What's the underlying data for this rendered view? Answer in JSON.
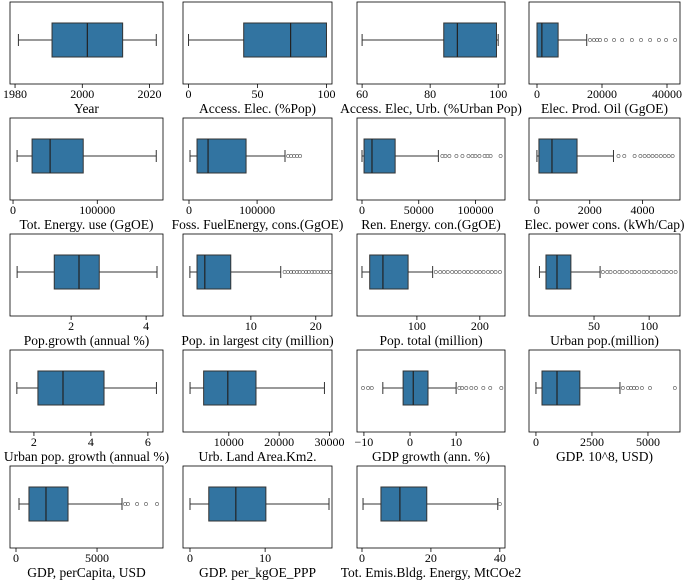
{
  "chart_data": [
    {
      "type": "box",
      "xlabel": "Year",
      "color": "#3274a1",
      "whisker_low": 1981,
      "q1": 1991,
      "median": 2001.5,
      "q3": 2012,
      "whisker_high": 2022,
      "outliers": [],
      "xlim": [
        1978.5,
        2024
      ],
      "xticks": [
        1980,
        2000,
        2020
      ]
    },
    {
      "type": "box",
      "xlabel": "Access. Elec. (%Pop)",
      "color": "#3274a1",
      "whisker_low": 0,
      "q1": 40,
      "median": 74,
      "q3": 100,
      "whisker_high": 100,
      "outliers": [],
      "xlim": [
        -4,
        104
      ],
      "xticks": [
        0,
        50,
        100
      ]
    },
    {
      "type": "box",
      "xlabel": "Access. Elec, Urb. (%Urban Pop)",
      "color": "#3274a1",
      "whisker_low": 60,
      "q1": 84,
      "median": 88,
      "q3": 99.5,
      "whisker_high": 100,
      "outliers": [],
      "xlim": [
        58.5,
        102
      ],
      "xticks": [
        60,
        80,
        100
      ]
    },
    {
      "type": "box",
      "xlabel": "Elec. Prod. Oil (GgOE)",
      "color": "#3274a1",
      "whisker_low": 0,
      "q1": 0,
      "median": 1500,
      "q3": 6500,
      "whisker_high": 15300,
      "outliers": [
        16300,
        17500,
        18500,
        19400,
        21200,
        23700,
        26200,
        29200,
        32000,
        34800,
        37500,
        39700,
        42500
      ],
      "xlim": [
        -2460,
        44000
      ],
      "xticks": [
        0,
        20000,
        40000
      ]
    },
    {
      "type": "box",
      "xlabel": "Tot. Energy. use (GgOE)",
      "color": "#3274a1",
      "whisker_low": 4800,
      "q1": 22600,
      "median": 44000,
      "q3": 83300,
      "whisker_high": 170000,
      "outliers": [],
      "xlim": [
        -3600,
        178000
      ],
      "xticks": [
        0,
        100000
      ]
    },
    {
      "type": "box",
      "xlabel": "Foss. FuelEnergy, cons.(GgOE)",
      "color": "#3274a1",
      "whisker_low": 1500,
      "q1": 11800,
      "median": 28000,
      "q3": 83800,
      "whisker_high": 141000,
      "outliers": [
        145600,
        150000,
        154400,
        158800,
        163200
      ],
      "xlim": [
        -8800,
        210000
      ],
      "xticks": [
        0,
        100000
      ]
    },
    {
      "type": "box",
      "xlabel": "Ren. Energy. con.(GgOE)",
      "color": "#3274a1",
      "whisker_low": 0,
      "q1": 1800,
      "median": 8800,
      "q3": 29200,
      "whisker_high": 67300,
      "outliers": [
        70800,
        73500,
        77000,
        83200,
        88500,
        93800,
        97300,
        100000,
        103500,
        108000,
        110600,
        113300,
        122100
      ],
      "xlim": [
        -4400,
        126000
      ],
      "xticks": [
        0,
        50000,
        100000
      ]
    },
    {
      "type": "box",
      "xlabel": "Elec. power cons. (kWh/Cap)",
      "color": "#3274a1",
      "whisker_low": 0,
      "q1": 76,
      "median": 570,
      "q3": 1520,
      "whisker_high": 2900,
      "outliers": [
        3090,
        3310,
        3700,
        3920,
        4080,
        4230,
        4380,
        4530,
        4690,
        4840,
        4990,
        5140
      ],
      "xlim": [
        -300,
        5420
      ],
      "xticks": [
        0,
        2000,
        4000
      ]
    },
    {
      "type": "box",
      "xlabel": "Pop.growth (annual %)",
      "color": "#3274a1",
      "whisker_low": 0.56,
      "q1": 1.55,
      "median": 2.21,
      "q3": 2.75,
      "whisker_high": 4.29,
      "outliers": [],
      "xlim": [
        0.37,
        4.45
      ],
      "xticks": [
        2,
        4
      ]
    },
    {
      "type": "box",
      "xlabel": "Pop. in largest city (million)",
      "color": "#3274a1",
      "whisker_low": 0.6,
      "q1": 1.7,
      "median": 2.9,
      "q3": 6.9,
      "whisker_high": 14.6,
      "outliers": [
        15.2,
        15.7,
        16.2,
        16.6,
        17.1,
        17.5,
        18,
        18.5,
        18.9,
        19.4,
        19.8,
        20.3,
        20.8,
        21.2,
        21.7,
        22.2
      ],
      "xlim": [
        -0.46,
        22.5
      ],
      "xticks": [
        10,
        20
      ]
    },
    {
      "type": "box",
      "xlabel": "Pop. total (million)",
      "color": "#3274a1",
      "whisker_low": 12.7,
      "q1": 25,
      "median": 46,
      "q3": 86,
      "whisker_high": 125,
      "outliers": [
        130,
        137,
        143,
        149,
        156,
        162,
        168,
        175,
        181,
        187,
        194,
        200,
        206,
        213,
        219,
        225,
        232
      ],
      "xlim": [
        4.8,
        240
      ],
      "xticks": [
        100,
        200
      ]
    },
    {
      "type": "box",
      "xlabel": "Urban pop.(million)",
      "color": "#3274a1",
      "whisker_low": 0.5,
      "q1": 6.4,
      "median": 16.4,
      "q3": 29,
      "whisker_high": 55.5,
      "outliers": [
        58,
        62,
        65,
        69,
        73,
        76,
        80,
        84,
        87,
        91,
        95,
        98,
        102,
        105,
        109,
        113,
        116,
        120,
        124
      ],
      "xlim": [
        -9,
        128
      ],
      "xticks": [
        50,
        100
      ]
    },
    {
      "type": "box",
      "xlabel": "Urban pop. growth (annual %)",
      "color": "#3274a1",
      "whisker_low": 1.4,
      "q1": 2.14,
      "median": 3.02,
      "q3": 4.46,
      "whisker_high": 6.3,
      "outliers": [],
      "xlim": [
        1.16,
        6.53
      ],
      "xticks": [
        2,
        4,
        6
      ]
    },
    {
      "type": "box",
      "xlabel": "Urb. Land Area.Km2.",
      "color": "#3274a1",
      "whisker_low": 2300,
      "q1": 5000,
      "median": 9800,
      "q3": 15400,
      "whisker_high": 29000,
      "outliers": [],
      "xlim": [
        900,
        30500
      ],
      "xticks": [
        10000,
        20000,
        30000
      ]
    },
    {
      "type": "box",
      "xlabel": "GDP growth (ann. %)",
      "color": "#3274a1",
      "whisker_low": -5.9,
      "q1": -1.5,
      "median": 0.7,
      "q3": 3.9,
      "whisker_high": 10,
      "outliers": [
        -10.2,
        -9.1,
        -8.3,
        10.7,
        11.3,
        12.2,
        13.3,
        14.3,
        15.9,
        17.4,
        19.8
      ],
      "xlim": [
        -11.5,
        20.6
      ],
      "xticks": [
        {
          "value": -10,
          "label": "−10"
        },
        0,
        10
      ]
    },
    {
      "type": "box",
      "xlabel": "GDP. 10^8, USD)",
      "color": "#3274a1",
      "whisker_low": 0,
      "q1": 270,
      "median": 940,
      "q3": 1960,
      "whisker_high": 3750,
      "outliers": [
        3880,
        4110,
        4240,
        4375,
        4510,
        4730,
        5090,
        6200
      ],
      "xlim": [
        -310,
        6430
      ],
      "xticks": [
        0,
        2500,
        5000
      ]
    },
    {
      "type": "box",
      "xlabel": "GDP, perCapita, USD",
      "color": "#3274a1",
      "whisker_low": 185,
      "q1": 800,
      "median": 1850,
      "q3": 3210,
      "whisker_high": 6540,
      "outliers": [
        6730,
        6910,
        7470,
        8020,
        8700
      ],
      "xlim": [
        -370,
        9070
      ],
      "xticks": [
        0,
        5000
      ]
    },
    {
      "type": "box",
      "xlabel": "GDP. per_kgOE_PPP",
      "color": "#3274a1",
      "whisker_low": 0,
      "q1": 2.5,
      "median": 6.1,
      "q3": 10.1,
      "whisker_high": 18.5,
      "outliers": [],
      "xlim": [
        -0.93,
        18.9
      ],
      "xticks": [
        0,
        10
      ]
    },
    {
      "type": "box",
      "xlabel": "Tot. Emis.Bldg. Energy, MtCOe2",
      "color": "#3274a1",
      "whisker_low": 0.3,
      "q1": 5.5,
      "median": 11,
      "q3": 18.8,
      "whisker_high": 39.4,
      "outliers": [
        40
      ],
      "xlim": [
        -1.45,
        41.5
      ],
      "xticks": [
        0,
        20,
        40
      ]
    }
  ]
}
